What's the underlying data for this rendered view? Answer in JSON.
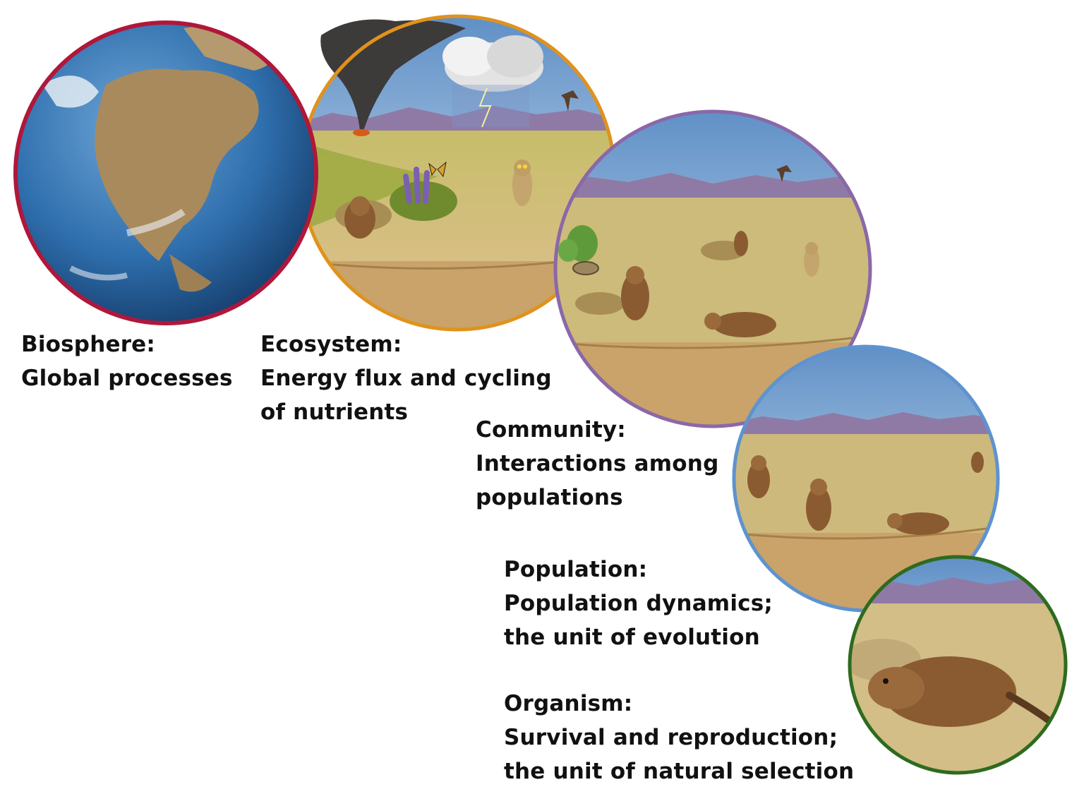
{
  "levels": [
    {
      "name": "Biosphere:",
      "desc": [
        "Global processes"
      ],
      "ring_color": "#b0173a"
    },
    {
      "name": "Ecosystem:",
      "desc": [
        "Energy flux and cycling",
        "of nutrients"
      ],
      "ring_color": "#e0921c"
    },
    {
      "name": "Community:",
      "desc": [
        "Interactions among",
        "populations"
      ],
      "ring_color": "#8a68a8"
    },
    {
      "name": "Population:",
      "desc": [
        "Population dynamics;",
        "the unit of evolution"
      ],
      "ring_color": "#5e93cf"
    },
    {
      "name": "Organism:",
      "desc": [
        "Survival and reproduction;",
        "the unit of natural selection"
      ],
      "ring_color": "#2e6b1f"
    }
  ],
  "colors": {
    "ocean": "#2f6fae",
    "land": "#a98a5c",
    "sky": "#9cc6e8",
    "mountains": "#8f7aa6",
    "grass": "#b7b25a",
    "soil": "#c9a36a",
    "prairie_dog": "#9a6a3c"
  },
  "icons": [
    "globe-icon",
    "tornado-icon",
    "storm-cloud-icon",
    "hawk-icon",
    "owl-icon",
    "butterfly-icon",
    "cactus-icon",
    "snake-icon",
    "prairie-dog-icon"
  ]
}
